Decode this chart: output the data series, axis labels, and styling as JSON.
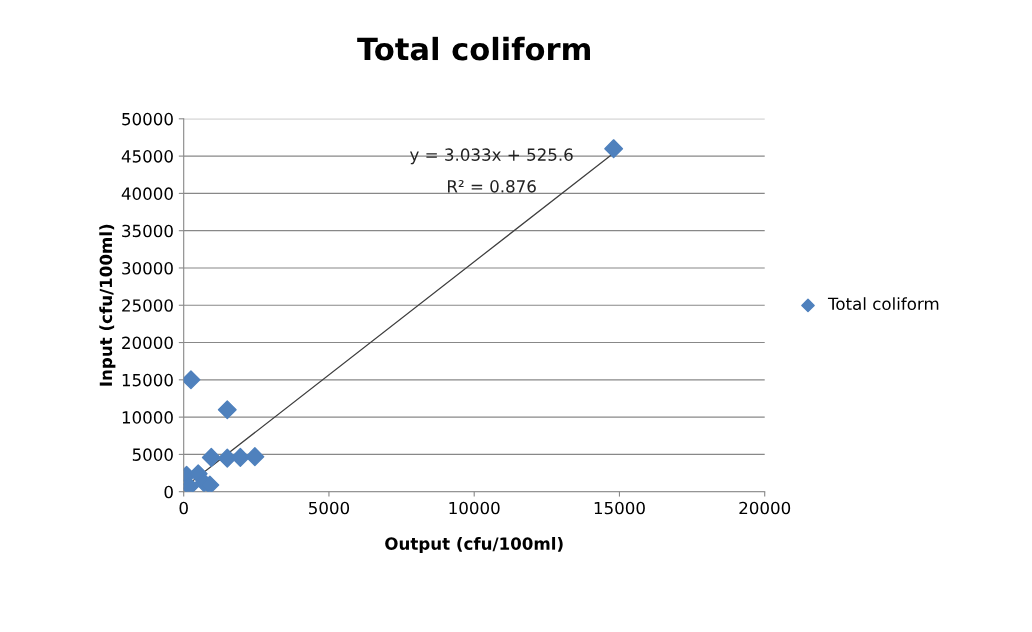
{
  "chart_data": {
    "type": "scatter",
    "title": "Total coliform",
    "xlabel": "Output (cfu/100ml)",
    "ylabel": "Input (cfu/100ml)",
    "series": [
      {
        "name": "Total coliform",
        "color": "#4f81bd",
        "marker": "diamond",
        "x": [
          14800,
          250,
          1500,
          950,
          1500,
          1950,
          2450,
          100,
          500,
          700,
          900,
          200
        ],
        "values": [
          46000,
          15000,
          11000,
          4600,
          4500,
          4600,
          4700,
          2200,
          2400,
          1200,
          900,
          700
        ]
      },
      {
        "type": "line",
        "color": "#404040",
        "marker": "none",
        "x": [
          0,
          14800
        ],
        "values": [
          500,
          45400
        ]
      }
    ],
    "xlim": [
      0,
      20000
    ],
    "xticks": [
      0,
      5000,
      10000,
      15000,
      20000
    ],
    "ylim": [
      0,
      50000
    ],
    "yticks": [
      0,
      5000,
      10000,
      15000,
      20000,
      25000,
      30000,
      35000,
      40000,
      45000,
      50000
    ],
    "grid": "y",
    "legend": "right",
    "annotations": [
      "y = 3.033x + 525.6",
      "R² = 0.876"
    ]
  }
}
